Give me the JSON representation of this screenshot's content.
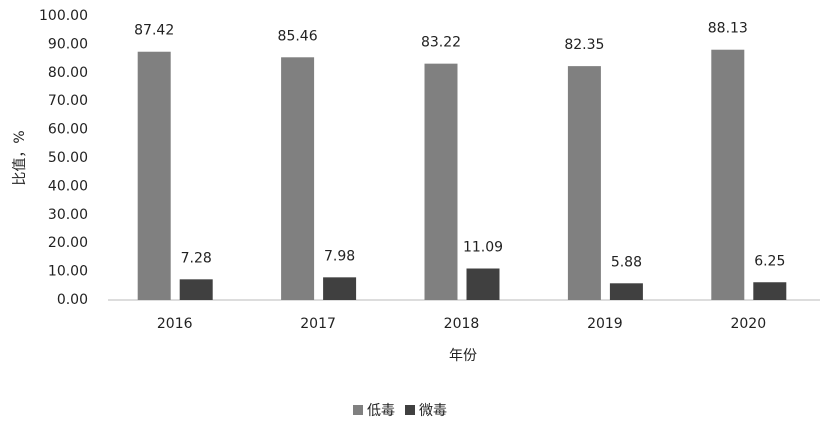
{
  "chart_data": {
    "type": "bar",
    "y_label": "比值，%",
    "x_label": "年份",
    "categories": [
      "2016",
      "2017",
      "2018",
      "2019",
      "2020"
    ],
    "series": [
      {
        "name": "低毒",
        "color": "#808080",
        "values": [
          87.42,
          85.46,
          83.22,
          82.35,
          88.13
        ]
      },
      {
        "name": "微毒",
        "color": "#404040",
        "values": [
          7.28,
          7.98,
          11.09,
          5.88,
          6.25
        ]
      }
    ],
    "ylim": [
      0,
      100
    ],
    "yticks": [
      {
        "value": 0,
        "label": "0.00"
      },
      {
        "value": 10,
        "label": "10.00"
      },
      {
        "value": 20,
        "label": "20.00"
      },
      {
        "value": 30,
        "label": "30.00"
      },
      {
        "value": 40,
        "label": "40.00"
      },
      {
        "value": 50,
        "label": "50.00"
      },
      {
        "value": 60,
        "label": "60.00"
      },
      {
        "value": 70,
        "label": "70.00"
      },
      {
        "value": 80,
        "label": "80.00"
      },
      {
        "value": 90,
        "label": "90.00"
      },
      {
        "value": 100,
        "label": "100.00"
      }
    ],
    "legend": "bottom",
    "grid": false
  }
}
